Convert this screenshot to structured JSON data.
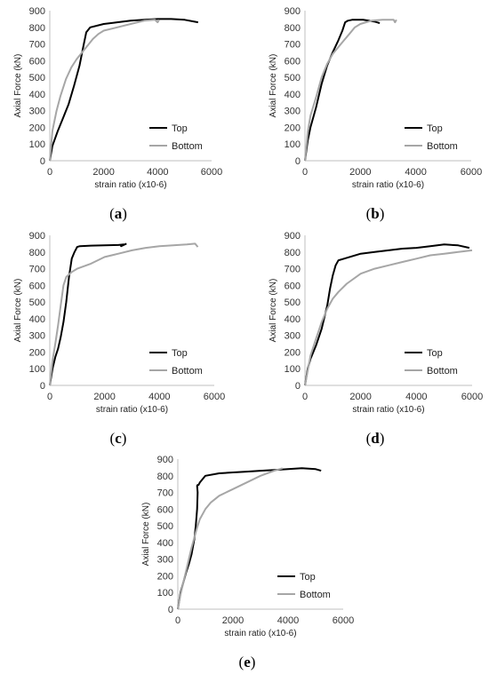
{
  "chart_data": [
    {
      "type": "line",
      "panel_label": "a",
      "xlabel": "strain ratio (x10-6)",
      "ylabel": "Axial Force (kN)",
      "xlim": [
        0,
        6000
      ],
      "ylim": [
        0,
        900
      ],
      "xticks": [
        "0",
        "2000",
        "4000",
        "6000"
      ],
      "yticks": [
        "0",
        "100",
        "200",
        "300",
        "400",
        "500",
        "600",
        "700",
        "800",
        "900"
      ],
      "grid": false,
      "legend": "right",
      "series": [
        {
          "name": "Top",
          "color": "#000000",
          "x": [
            0,
            100,
            300,
            500,
            700,
            900,
            1100,
            1250,
            1350,
            1500,
            2000,
            2500,
            3000,
            3500,
            4000,
            4500,
            5000,
            5500
          ],
          "y": [
            0,
            90,
            180,
            260,
            340,
            450,
            570,
            690,
            770,
            800,
            820,
            830,
            840,
            845,
            850,
            850,
            845,
            830
          ]
        },
        {
          "name": "Bottom",
          "color": "#a6a6a6",
          "x": [
            0,
            100,
            250,
            400,
            600,
            800,
            1000,
            1200,
            1400,
            1600,
            1800,
            2000,
            2500,
            3000,
            3500,
            3900,
            4000,
            4050
          ],
          "y": [
            0,
            180,
            300,
            390,
            490,
            560,
            610,
            650,
            690,
            730,
            760,
            780,
            800,
            820,
            840,
            845,
            830,
            845
          ]
        }
      ]
    },
    {
      "type": "line",
      "panel_label": "b",
      "xlabel": "strain ratio (x10-6)",
      "ylabel": "Axial Force (kN)",
      "xlim": [
        0,
        6000
      ],
      "ylim": [
        0,
        900
      ],
      "xticks": [
        "0",
        "2000",
        "4000",
        "6000"
      ],
      "yticks": [
        "0",
        "100",
        "200",
        "300",
        "400",
        "500",
        "600",
        "700",
        "800",
        "900"
      ],
      "grid": false,
      "legend": "right",
      "series": [
        {
          "name": "Top",
          "color": "#000000",
          "x": [
            0,
            100,
            200,
            400,
            600,
            800,
            1000,
            1200,
            1350,
            1450,
            1550,
            1700,
            1900,
            2100,
            2300,
            2500,
            2700
          ],
          "y": [
            0,
            120,
            200,
            320,
            460,
            570,
            650,
            720,
            780,
            830,
            840,
            845,
            845,
            845,
            840,
            835,
            825
          ]
        },
        {
          "name": "Bottom",
          "color": "#a6a6a6",
          "x": [
            0,
            100,
            200,
            400,
            600,
            800,
            1000,
            1200,
            1400,
            1600,
            1800,
            2000,
            2400,
            2800,
            3200,
            3250,
            3300
          ],
          "y": [
            0,
            170,
            270,
            380,
            500,
            580,
            640,
            680,
            720,
            760,
            800,
            820,
            840,
            845,
            845,
            830,
            845
          ]
        }
      ]
    },
    {
      "type": "line",
      "panel_label": "c",
      "xlabel": "strain ratio (x10-6)",
      "ylabel": "Axial Force (kN)",
      "xlim": [
        0,
        6000
      ],
      "ylim": [
        0,
        900
      ],
      "xticks": [
        "0",
        "2000",
        "4000",
        "6000"
      ],
      "yticks": [
        "0",
        "100",
        "200",
        "300",
        "400",
        "500",
        "600",
        "700",
        "800",
        "900"
      ],
      "grid": false,
      "legend": "right",
      "series": [
        {
          "name": "Top",
          "color": "#000000",
          "x": [
            0,
            100,
            200,
            300,
            400,
            500,
            600,
            700,
            800,
            900,
            1000,
            1100,
            1500,
            2000,
            2500,
            2700,
            2600,
            2800
          ],
          "y": [
            0,
            100,
            170,
            220,
            290,
            380,
            500,
            650,
            760,
            800,
            830,
            835,
            838,
            840,
            842,
            845,
            835,
            850
          ]
        },
        {
          "name": "Bottom",
          "color": "#a6a6a6",
          "x": [
            0,
            100,
            200,
            300,
            400,
            500,
            600,
            800,
            1000,
            1500,
            2000,
            2500,
            3000,
            3500,
            4000,
            4500,
            5000,
            5300,
            5400
          ],
          "y": [
            0,
            150,
            250,
            360,
            480,
            600,
            650,
            680,
            700,
            730,
            770,
            790,
            810,
            825,
            835,
            840,
            845,
            850,
            830
          ]
        }
      ]
    },
    {
      "type": "line",
      "panel_label": "d",
      "xlabel": "strain ratio (x10-6)",
      "ylabel": "Axial Force (kN)",
      "xlim": [
        0,
        6000
      ],
      "ylim": [
        0,
        900
      ],
      "xticks": [
        "0",
        "2000",
        "4000",
        "6000"
      ],
      "yticks": [
        "0",
        "100",
        "200",
        "300",
        "400",
        "500",
        "600",
        "700",
        "800",
        "900"
      ],
      "grid": false,
      "legend": "right",
      "series": [
        {
          "name": "Top",
          "color": "#000000",
          "x": [
            0,
            100,
            200,
            400,
            600,
            800,
            900,
            1000,
            1100,
            1200,
            1400,
            2000,
            2500,
            3000,
            3500,
            4000,
            4500,
            5000,
            5500,
            5900
          ],
          "y": [
            0,
            100,
            160,
            240,
            340,
            480,
            580,
            660,
            720,
            750,
            760,
            790,
            800,
            810,
            820,
            825,
            835,
            845,
            840,
            825
          ]
        },
        {
          "name": "Bottom",
          "color": "#a6a6a6",
          "x": [
            0,
            200,
            400,
            600,
            800,
            1000,
            1200,
            1500,
            2000,
            2500,
            3000,
            3500,
            4000,
            4500,
            5000,
            5500,
            6000
          ],
          "y": [
            0,
            180,
            280,
            380,
            460,
            520,
            560,
            610,
            670,
            700,
            720,
            740,
            760,
            780,
            790,
            800,
            810
          ]
        }
      ]
    },
    {
      "type": "line",
      "panel_label": "e",
      "xlabel": "strain ratio (x10-6)",
      "ylabel": "Axial Force (kN)",
      "xlim": [
        0,
        6000
      ],
      "ylim": [
        0,
        900
      ],
      "xticks": [
        "0",
        "2000",
        "4000",
        "6000"
      ],
      "yticks": [
        "0",
        "100",
        "200",
        "300",
        "400",
        "500",
        "600",
        "700",
        "800",
        "900"
      ],
      "grid": false,
      "legend": "right",
      "series": [
        {
          "name": "Top",
          "color": "#000000",
          "x": [
            0,
            100,
            200,
            300,
            400,
            500,
            600,
            650,
            700,
            720,
            700,
            720,
            750,
            800,
            1000,
            1500,
            2000,
            2500,
            3000,
            3500,
            4000,
            4500,
            5000,
            5200
          ],
          "y": [
            0,
            100,
            160,
            220,
            270,
            330,
            420,
            500,
            600,
            700,
            740,
            745,
            745,
            760,
            800,
            815,
            820,
            825,
            830,
            835,
            840,
            845,
            840,
            830
          ]
        },
        {
          "name": "Bottom",
          "color": "#a6a6a6",
          "x": [
            0,
            100,
            200,
            300,
            400,
            500,
            600,
            700,
            800,
            1000,
            1200,
            1500,
            2000,
            2500,
            3000,
            3500,
            3800
          ],
          "y": [
            0,
            90,
            160,
            230,
            300,
            370,
            430,
            490,
            540,
            600,
            640,
            680,
            720,
            760,
            800,
            830,
            845
          ]
        }
      ]
    }
  ]
}
